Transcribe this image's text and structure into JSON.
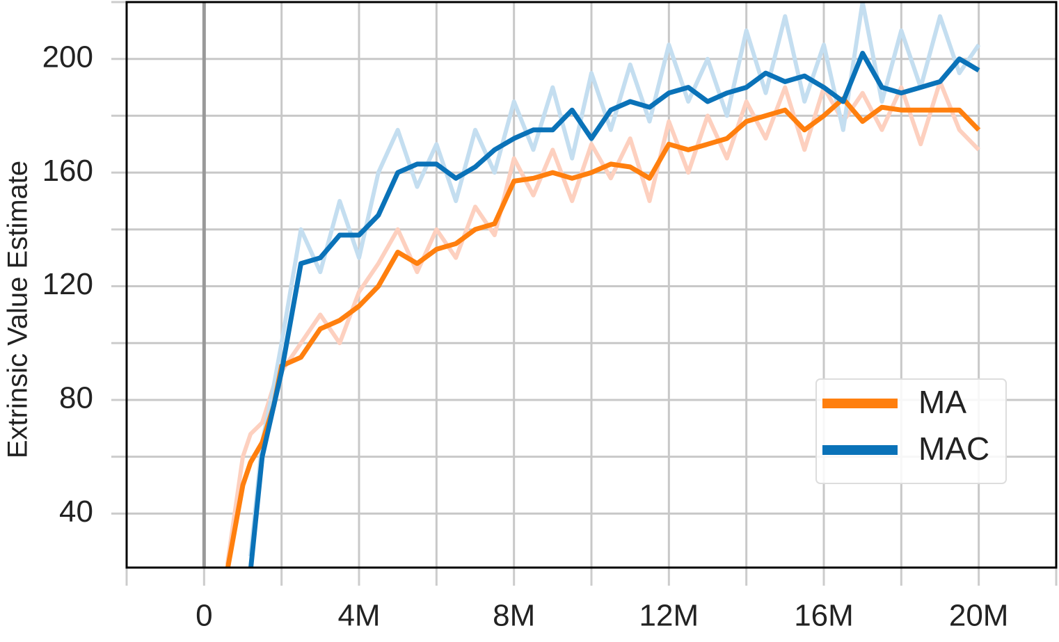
{
  "chart_data": {
    "type": "line",
    "ylabel": "Extrinsic Value Estimate",
    "xlim": [
      -2000000,
      22000000
    ],
    "ylim": [
      21,
      220
    ],
    "xticks": [
      {
        "value": 0,
        "label": "0"
      },
      {
        "value": 4000000,
        "label": "4M"
      },
      {
        "value": 8000000,
        "label": "8M"
      },
      {
        "value": 12000000,
        "label": "12M"
      },
      {
        "value": 16000000,
        "label": "16M"
      },
      {
        "value": 20000000,
        "label": "20M"
      }
    ],
    "x_minor_ticks": [
      -2000000,
      2000000,
      6000000,
      10000000,
      14000000,
      18000000,
      22000000
    ],
    "yticks": [
      40,
      80,
      120,
      160,
      200
    ],
    "y_minor_ticks": [
      60,
      100,
      140,
      180,
      220
    ],
    "grid": true,
    "vline_x": 0,
    "legend": "lower right",
    "series": [
      {
        "name": "MA",
        "color": "#ff7f0e",
        "raw_color": "#fdd0bf",
        "x": [
          600000,
          1000000,
          1200000,
          1500000,
          1800000,
          2000000,
          2500000,
          3000000,
          3500000,
          4000000,
          4500000,
          5000000,
          5500000,
          6000000,
          6500000,
          7000000,
          7500000,
          8000000,
          8500000,
          9000000,
          9500000,
          10000000,
          10500000,
          11000000,
          11500000,
          12000000,
          12500000,
          13000000,
          13500000,
          14000000,
          14500000,
          15000000,
          15500000,
          16000000,
          16500000,
          17000000,
          17500000,
          18000000,
          18500000,
          19000000,
          19500000,
          20000000
        ],
        "values": [
          20,
          50,
          58,
          65,
          78,
          92,
          95,
          105,
          108,
          113,
          120,
          132,
          128,
          133,
          135,
          140,
          142,
          157,
          158,
          160,
          158,
          160,
          163,
          162,
          158,
          170,
          168,
          170,
          172,
          178,
          180,
          182,
          175,
          180,
          186,
          178,
          183,
          182,
          182,
          182,
          182,
          175
        ],
        "raw_values": [
          22,
          60,
          68,
          72,
          85,
          90,
          100,
          110,
          100,
          118,
          128,
          140,
          125,
          140,
          130,
          148,
          138,
          165,
          152,
          168,
          150,
          170,
          158,
          172,
          150,
          178,
          160,
          180,
          165,
          185,
          172,
          190,
          168,
          190,
          178,
          188,
          175,
          190,
          170,
          192,
          175,
          168
        ]
      },
      {
        "name": "MAC",
        "color": "#0a72b8",
        "raw_color": "#c4def0",
        "x": [
          1200000,
          1500000,
          1800000,
          2000000,
          2500000,
          3000000,
          3500000,
          4000000,
          4500000,
          5000000,
          5500000,
          6000000,
          6500000,
          7000000,
          7500000,
          8000000,
          8500000,
          9000000,
          9500000,
          10000000,
          10500000,
          11000000,
          11500000,
          12000000,
          12500000,
          13000000,
          13500000,
          14000000,
          14500000,
          15000000,
          15500000,
          16000000,
          16500000,
          17000000,
          17500000,
          18000000,
          18500000,
          19000000,
          19500000,
          20000000
        ],
        "values": [
          20,
          60,
          78,
          90,
          128,
          130,
          138,
          138,
          145,
          160,
          163,
          163,
          158,
          162,
          168,
          172,
          175,
          175,
          182,
          172,
          182,
          185,
          183,
          188,
          190,
          185,
          188,
          190,
          195,
          192,
          194,
          190,
          185,
          202,
          190,
          188,
          190,
          192,
          200,
          196
        ],
        "raw_values": [
          25,
          65,
          85,
          100,
          140,
          125,
          150,
          130,
          160,
          175,
          155,
          170,
          150,
          175,
          160,
          185,
          168,
          190,
          165,
          195,
          175,
          198,
          178,
          205,
          185,
          200,
          180,
          210,
          188,
          215,
          185,
          205,
          175,
          220,
          185,
          210,
          190,
          215,
          195,
          205
        ]
      }
    ]
  }
}
